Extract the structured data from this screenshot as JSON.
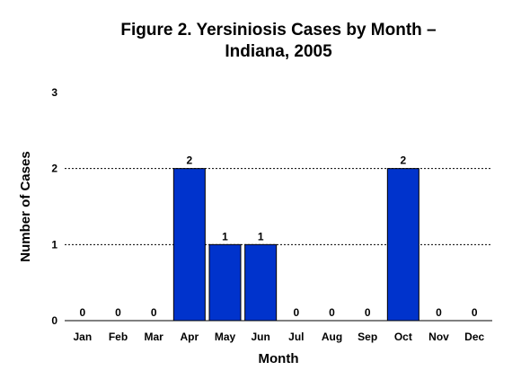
{
  "chart_data": {
    "type": "bar",
    "title_line1": "Figure 2.  Yersiniosis Cases by Month –",
    "title_line2": "Indiana, 2005",
    "xlabel": "Month",
    "ylabel": "Number of Cases",
    "categories": [
      "Jan",
      "Feb",
      "Mar",
      "Apr",
      "May",
      "Jun",
      "Jul",
      "Aug",
      "Sep",
      "Oct",
      "Nov",
      "Dec"
    ],
    "values": [
      0,
      0,
      0,
      2,
      1,
      1,
      0,
      0,
      0,
      2,
      0,
      0
    ],
    "ylim": [
      0,
      3
    ],
    "yticks": [
      0,
      1,
      2,
      3
    ],
    "grid": "horizontal dotted",
    "legend": "none",
    "data_labels": true,
    "bar_color": "#0033CC"
  }
}
